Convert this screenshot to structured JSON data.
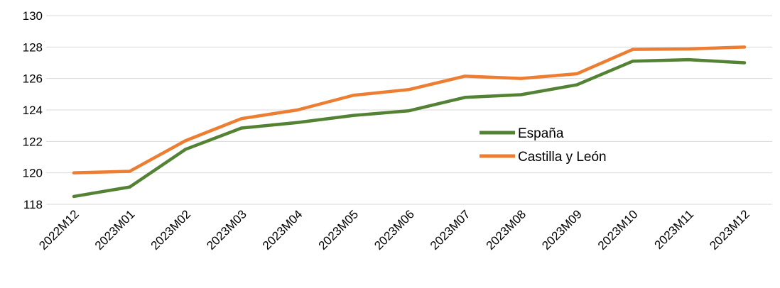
{
  "chart_data": {
    "type": "line",
    "title": "",
    "xlabel": "",
    "ylabel": "",
    "ylim": [
      118,
      130
    ],
    "yticks": [
      118,
      120,
      122,
      124,
      126,
      128,
      130
    ],
    "grid": true,
    "legend_position": "center-right",
    "categories": [
      "2022M12",
      "2023M01",
      "2023M02",
      "2023M03",
      "2023M04",
      "2023M05",
      "2023M06",
      "2023M07",
      "2023M08",
      "2023M09",
      "2023M10",
      "2023M11",
      "2023M12"
    ],
    "series": [
      {
        "name": "España",
        "color": "#548235",
        "values": [
          118.5,
          119.1,
          121.5,
          122.85,
          123.2,
          123.65,
          123.95,
          124.8,
          124.97,
          125.6,
          127.1,
          127.2,
          127.0
        ]
      },
      {
        "name": "Castilla y León",
        "color": "#ed7d31",
        "values": [
          120.0,
          120.1,
          122.05,
          123.45,
          124.0,
          124.93,
          125.3,
          126.15,
          126.0,
          126.3,
          127.85,
          127.88,
          128.0
        ]
      }
    ]
  }
}
